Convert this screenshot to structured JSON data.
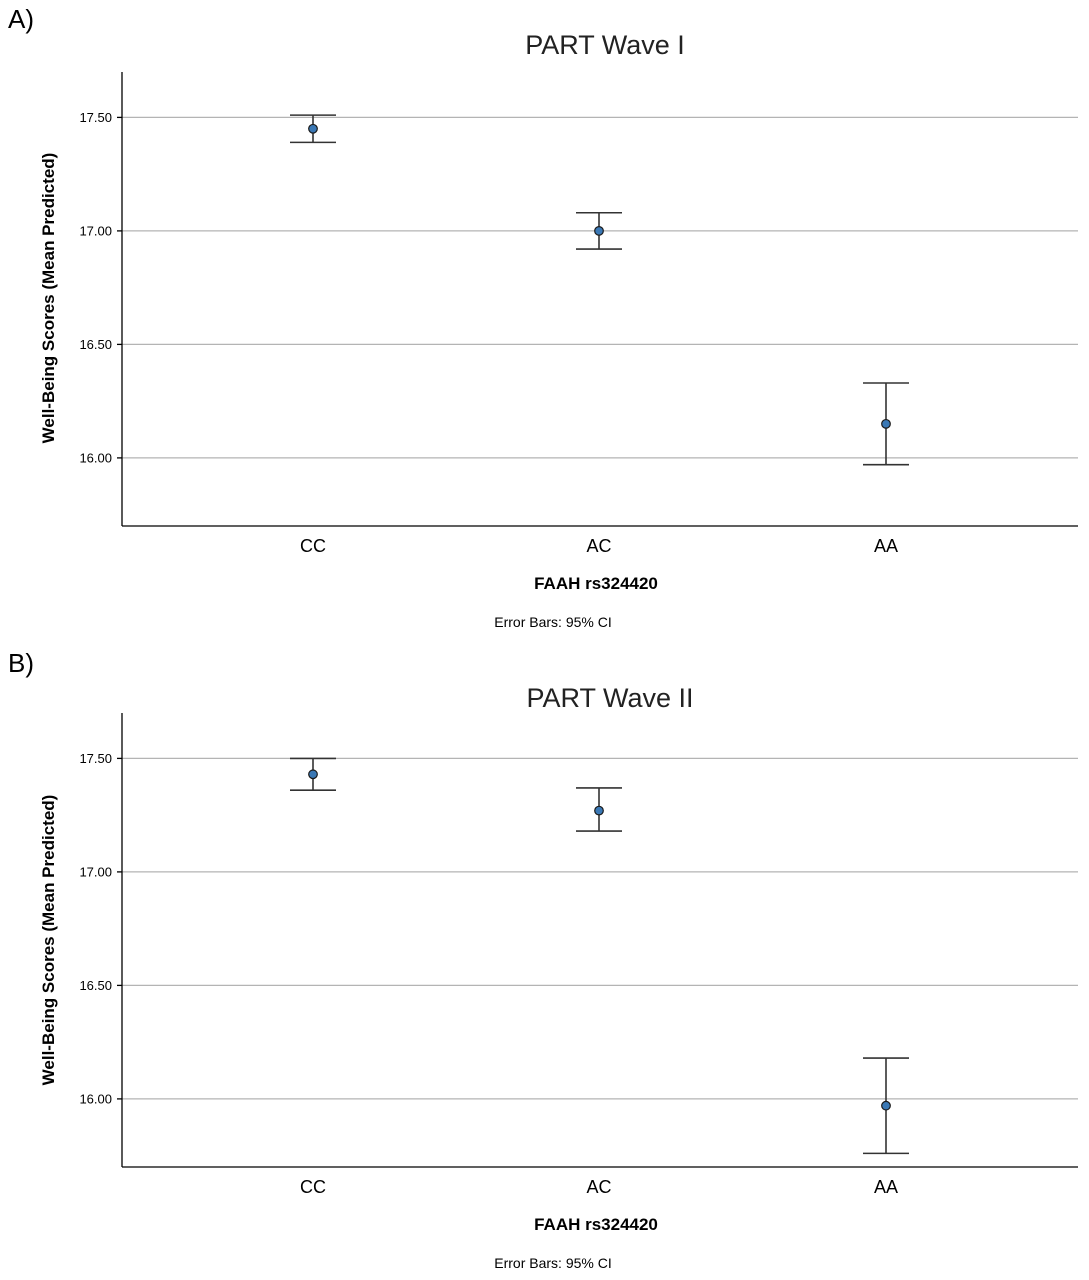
{
  "chart_data": [
    {
      "type": "scatter",
      "panel_label": "A)",
      "title": "PART Wave I",
      "xlabel": "FAAH rs324420",
      "ylabel": "Well-Being Scores (Mean Predicted)",
      "note": "Error Bars: 95% CI",
      "categories": [
        "CC",
        "AC",
        "AA"
      ],
      "values": [
        17.45,
        17.0,
        16.15
      ],
      "ci_lower": [
        17.39,
        16.92,
        15.97
      ],
      "ci_upper": [
        17.51,
        17.08,
        16.33
      ],
      "yticks": [
        "16.00",
        "16.50",
        "17.00",
        "17.50"
      ],
      "ytick_values": [
        16.0,
        16.5,
        17.0,
        17.5
      ],
      "ylim": [
        15.7,
        17.7
      ],
      "grid": true,
      "point_color": "#3a78b5"
    },
    {
      "type": "scatter",
      "panel_label": "B)",
      "title": "PART Wave II",
      "xlabel": "FAAH rs324420",
      "ylabel": "Well-Being Scores (Mean Predicted)",
      "note": "Error Bars: 95% CI",
      "categories": [
        "CC",
        "AC",
        "AA"
      ],
      "values": [
        17.43,
        17.27,
        15.97
      ],
      "ci_lower": [
        17.36,
        17.18,
        15.76
      ],
      "ci_upper": [
        17.5,
        17.37,
        16.18
      ],
      "yticks": [
        "16.00",
        "16.50",
        "17.00",
        "17.50"
      ],
      "ytick_values": [
        16.0,
        16.5,
        17.0,
        17.5
      ],
      "ylim": [
        15.7,
        17.7
      ],
      "grid": true,
      "point_color": "#3a78b5"
    }
  ]
}
